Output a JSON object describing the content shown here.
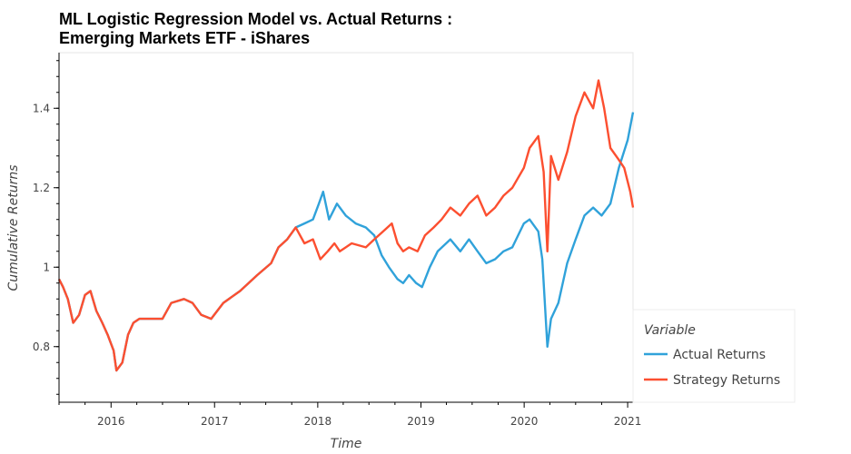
{
  "chart_data": {
    "type": "line",
    "title_line1": "ML Logistic Regression Model vs. Actual Returns :",
    "title_line2": "Emerging Markets ETF - iShares",
    "xlabel": "Time",
    "ylabel": "Cumulative Returns",
    "xlim": [
      "2015-07-01",
      "2021-01-20"
    ],
    "ylim": [
      0.66,
      1.54
    ],
    "x_ticks": [
      "2016",
      "2017",
      "2018",
      "2019",
      "2020",
      "2021"
    ],
    "y_ticks": [
      {
        "value": 0.8,
        "label": "0.8"
      },
      {
        "value": 1.0,
        "label": "1"
      },
      {
        "value": 1.2,
        "label": "1.2"
      },
      {
        "value": 1.4,
        "label": "1.4"
      }
    ],
    "grid": false,
    "legend": {
      "title": "Variable",
      "position": "bottom-right-outside"
    },
    "series": [
      {
        "name": "Actual Returns",
        "color": "#30a2da",
        "points": [
          [
            "2015-07-01",
            0.97
          ],
          [
            "2015-07-15",
            0.95
          ],
          [
            "2015-08-01",
            0.92
          ],
          [
            "2015-08-20",
            0.86
          ],
          [
            "2015-09-10",
            0.88
          ],
          [
            "2015-10-01",
            0.93
          ],
          [
            "2015-10-20",
            0.94
          ],
          [
            "2015-11-10",
            0.89
          ],
          [
            "2015-12-01",
            0.86
          ],
          [
            "2015-12-20",
            0.83
          ],
          [
            "2016-01-10",
            0.79
          ],
          [
            "2016-01-20",
            0.74
          ],
          [
            "2016-02-10",
            0.76
          ],
          [
            "2016-03-01",
            0.83
          ],
          [
            "2016-03-20",
            0.86
          ],
          [
            "2016-04-10",
            0.87
          ],
          [
            "2016-07-01",
            0.87
          ],
          [
            "2016-08-01",
            0.91
          ],
          [
            "2016-09-15",
            0.92
          ],
          [
            "2016-10-15",
            0.91
          ],
          [
            "2016-11-15",
            0.88
          ],
          [
            "2016-12-20",
            0.87
          ],
          [
            "2017-02-01",
            0.91
          ],
          [
            "2017-04-01",
            0.94
          ],
          [
            "2017-06-01",
            0.98
          ],
          [
            "2017-07-20",
            1.01
          ],
          [
            "2017-08-15",
            1.05
          ],
          [
            "2017-09-15",
            1.07
          ],
          [
            "2017-10-15",
            1.1
          ],
          [
            "2017-11-15",
            1.11
          ],
          [
            "2017-12-15",
            1.12
          ],
          [
            "2018-01-05",
            1.16
          ],
          [
            "2018-01-20",
            1.19
          ],
          [
            "2018-02-10",
            1.12
          ],
          [
            "2018-03-10",
            1.16
          ],
          [
            "2018-04-10",
            1.13
          ],
          [
            "2018-05-15",
            1.11
          ],
          [
            "2018-06-20",
            1.1
          ],
          [
            "2018-07-20",
            1.08
          ],
          [
            "2018-08-15",
            1.03
          ],
          [
            "2018-09-10",
            1.0
          ],
          [
            "2018-10-10",
            0.97
          ],
          [
            "2018-10-30",
            0.96
          ],
          [
            "2018-11-20",
            0.98
          ],
          [
            "2018-12-15",
            0.96
          ],
          [
            "2019-01-05",
            0.95
          ],
          [
            "2019-02-01",
            1.0
          ],
          [
            "2019-03-01",
            1.04
          ],
          [
            "2019-04-15",
            1.07
          ],
          [
            "2019-05-20",
            1.04
          ],
          [
            "2019-06-20",
            1.07
          ],
          [
            "2019-07-20",
            1.04
          ],
          [
            "2019-08-20",
            1.01
          ],
          [
            "2019-09-20",
            1.02
          ],
          [
            "2019-10-20",
            1.04
          ],
          [
            "2019-11-20",
            1.05
          ],
          [
            "2019-12-31",
            1.11
          ],
          [
            "2020-01-20",
            1.12
          ],
          [
            "2020-02-20",
            1.09
          ],
          [
            "2020-03-05",
            1.02
          ],
          [
            "2020-03-23",
            0.8
          ],
          [
            "2020-04-05",
            0.87
          ],
          [
            "2020-05-01",
            0.91
          ],
          [
            "2020-06-01",
            1.01
          ],
          [
            "2020-07-01",
            1.07
          ],
          [
            "2020-08-01",
            1.13
          ],
          [
            "2020-09-01",
            1.15
          ],
          [
            "2020-10-01",
            1.13
          ],
          [
            "2020-11-01",
            1.16
          ],
          [
            "2020-12-01",
            1.25
          ],
          [
            "2021-01-01",
            1.32
          ],
          [
            "2021-01-20",
            1.39
          ]
        ]
      },
      {
        "name": "Strategy Returns",
        "color": "#fc4f30",
        "points": [
          [
            "2015-07-01",
            0.97
          ],
          [
            "2015-07-15",
            0.95
          ],
          [
            "2015-08-01",
            0.92
          ],
          [
            "2015-08-20",
            0.86
          ],
          [
            "2015-09-10",
            0.88
          ],
          [
            "2015-10-01",
            0.93
          ],
          [
            "2015-10-20",
            0.94
          ],
          [
            "2015-11-10",
            0.89
          ],
          [
            "2015-12-01",
            0.86
          ],
          [
            "2015-12-20",
            0.83
          ],
          [
            "2016-01-10",
            0.79
          ],
          [
            "2016-01-20",
            0.74
          ],
          [
            "2016-02-10",
            0.76
          ],
          [
            "2016-03-01",
            0.83
          ],
          [
            "2016-03-20",
            0.86
          ],
          [
            "2016-04-10",
            0.87
          ],
          [
            "2016-07-01",
            0.87
          ],
          [
            "2016-08-01",
            0.91
          ],
          [
            "2016-09-15",
            0.92
          ],
          [
            "2016-10-15",
            0.91
          ],
          [
            "2016-11-15",
            0.88
          ],
          [
            "2016-12-20",
            0.87
          ],
          [
            "2017-02-01",
            0.91
          ],
          [
            "2017-04-01",
            0.94
          ],
          [
            "2017-06-01",
            0.98
          ],
          [
            "2017-07-20",
            1.01
          ],
          [
            "2017-08-15",
            1.05
          ],
          [
            "2017-09-15",
            1.07
          ],
          [
            "2017-10-15",
            1.1
          ],
          [
            "2017-11-15",
            1.06
          ],
          [
            "2017-12-15",
            1.07
          ],
          [
            "2018-01-10",
            1.02
          ],
          [
            "2018-02-05",
            1.04
          ],
          [
            "2018-03-01",
            1.06
          ],
          [
            "2018-03-20",
            1.04
          ],
          [
            "2018-05-01",
            1.06
          ],
          [
            "2018-06-20",
            1.05
          ],
          [
            "2018-07-20",
            1.07
          ],
          [
            "2018-08-20",
            1.09
          ],
          [
            "2018-09-20",
            1.11
          ],
          [
            "2018-10-10",
            1.06
          ],
          [
            "2018-10-30",
            1.04
          ],
          [
            "2018-11-20",
            1.05
          ],
          [
            "2018-12-20",
            1.04
          ],
          [
            "2019-01-15",
            1.08
          ],
          [
            "2019-02-15",
            1.1
          ],
          [
            "2019-03-15",
            1.12
          ],
          [
            "2019-04-15",
            1.15
          ],
          [
            "2019-05-20",
            1.13
          ],
          [
            "2019-06-20",
            1.16
          ],
          [
            "2019-07-20",
            1.18
          ],
          [
            "2019-08-20",
            1.13
          ],
          [
            "2019-09-20",
            1.15
          ],
          [
            "2019-10-20",
            1.18
          ],
          [
            "2019-11-20",
            1.2
          ],
          [
            "2019-12-31",
            1.25
          ],
          [
            "2020-01-20",
            1.3
          ],
          [
            "2020-02-20",
            1.33
          ],
          [
            "2020-03-10",
            1.24
          ],
          [
            "2020-03-23",
            1.04
          ],
          [
            "2020-04-05",
            1.28
          ],
          [
            "2020-05-01",
            1.22
          ],
          [
            "2020-06-01",
            1.29
          ],
          [
            "2020-07-01",
            1.38
          ],
          [
            "2020-08-01",
            1.44
          ],
          [
            "2020-09-01",
            1.4
          ],
          [
            "2020-09-20",
            1.47
          ],
          [
            "2020-10-10",
            1.4
          ],
          [
            "2020-11-01",
            1.3
          ],
          [
            "2020-12-01",
            1.27
          ],
          [
            "2020-12-20",
            1.25
          ],
          [
            "2021-01-10",
            1.19
          ],
          [
            "2021-01-20",
            1.15
          ]
        ]
      }
    ]
  }
}
